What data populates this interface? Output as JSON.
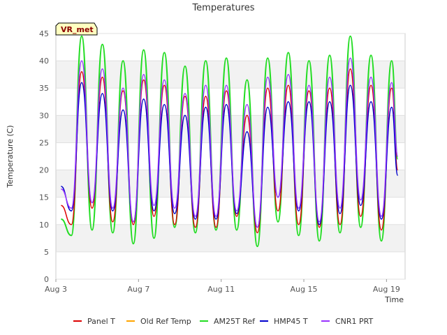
{
  "chart_data": {
    "type": "line",
    "title": "Temperatures",
    "xlabel": "Time",
    "ylabel": "Temperature (C)",
    "badge": "VR_met",
    "x_ticks": [
      "Aug 3",
      "Aug 7",
      "Aug 11",
      "Aug 15",
      "Aug 19"
    ],
    "x_tick_days": [
      3,
      7,
      11,
      15,
      19
    ],
    "xlim": [
      3,
      19.9
    ],
    "ylim": [
      0,
      45
    ],
    "y_ticks": [
      0,
      5,
      10,
      15,
      20,
      25,
      30,
      35,
      40,
      45
    ],
    "grid": true,
    "legend_position": "bottom",
    "days": [
      3.25,
      3.75,
      4.25,
      4.75,
      5.25,
      5.75,
      6.25,
      6.75,
      7.25,
      7.75,
      8.25,
      8.75,
      9.25,
      9.75,
      10.25,
      10.75,
      11.25,
      11.75,
      12.25,
      12.75,
      13.25,
      13.75,
      14.25,
      14.75,
      15.25,
      15.75,
      16.25,
      16.75,
      17.25,
      17.75,
      18.25,
      18.75,
      19.25,
      19.55
    ],
    "series": [
      {
        "name": "Panel T",
        "color": "#dd0000",
        "values": [
          13.5,
          10.0,
          38.0,
          13.0,
          37.0,
          10.5,
          34.5,
          10.0,
          36.5,
          11.5,
          35.5,
          10.0,
          33.5,
          9.5,
          33.5,
          9.5,
          34.5,
          11.5,
          30.0,
          8.5,
          35.0,
          12.5,
          35.5,
          10.0,
          34.5,
          9.5,
          35.0,
          10.0,
          38.5,
          11.5,
          35.5,
          9.0,
          35.0,
          20.0
        ]
      },
      {
        "name": "Old Ref Temp",
        "color": "#ffa500",
        "values": []
      },
      {
        "name": "AM25T Ref",
        "color": "#22dd22",
        "values": [
          11.0,
          8.0,
          44.5,
          9.0,
          43.0,
          8.5,
          40.0,
          6.5,
          42.0,
          7.5,
          41.5,
          9.5,
          39.0,
          8.5,
          40.0,
          9.0,
          40.5,
          9.0,
          36.5,
          6.0,
          40.5,
          10.5,
          41.5,
          8.0,
          40.0,
          7.0,
          41.0,
          8.5,
          44.5,
          9.5,
          41.0,
          7.0,
          40.0,
          22.0
        ]
      },
      {
        "name": "HMP45 T",
        "color": "#0000cc",
        "values": [
          17.0,
          12.5,
          36.0,
          14.0,
          34.0,
          12.5,
          31.0,
          10.5,
          33.0,
          12.5,
          32.0,
          12.0,
          30.0,
          11.0,
          31.5,
          11.0,
          32.0,
          12.0,
          27.0,
          9.5,
          31.5,
          15.0,
          32.5,
          12.5,
          32.5,
          10.0,
          32.5,
          12.0,
          35.5,
          13.5,
          32.5,
          11.0,
          31.5,
          19.0
        ]
      },
      {
        "name": "CNR1 PRT",
        "color": "#9933ff",
        "values": [
          16.5,
          13.0,
          40.0,
          14.0,
          38.5,
          13.0,
          35.0,
          10.5,
          37.5,
          13.5,
          36.5,
          13.0,
          34.0,
          11.5,
          35.5,
          11.5,
          35.5,
          12.5,
          32.0,
          9.5,
          37.0,
          15.0,
          37.5,
          13.0,
          35.5,
          10.5,
          37.0,
          13.0,
          40.5,
          14.5,
          37.0,
          11.5,
          36.0,
          22.5
        ]
      }
    ]
  }
}
